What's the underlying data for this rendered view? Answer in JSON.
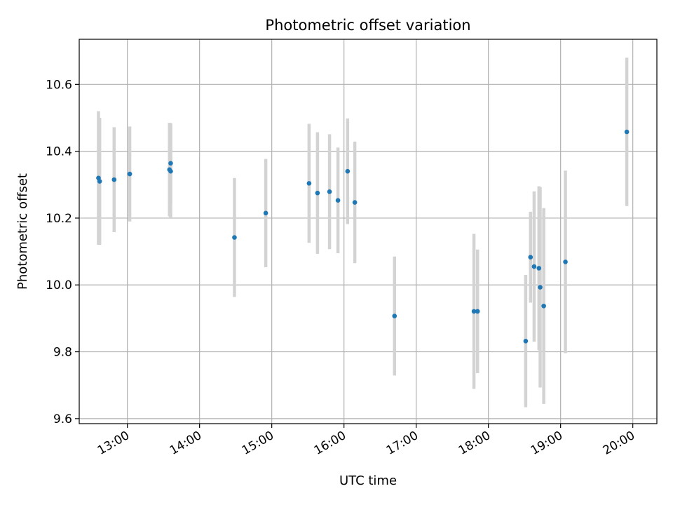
{
  "chart_data": {
    "type": "scatter",
    "title": "Photometric offset variation",
    "xlabel": "UTC time",
    "ylabel": "Photometric offset",
    "x_axis_kind": "time",
    "xlim": [
      "12:20",
      "20:20"
    ],
    "ylim": [
      9.585,
      10.735
    ],
    "x_ticks": [
      "13:00",
      "14:00",
      "15:00",
      "16:00",
      "17:00",
      "18:00",
      "19:00",
      "20:00"
    ],
    "y_ticks": [
      9.6,
      9.8,
      10.0,
      10.2,
      10.4,
      10.6
    ],
    "y_tick_labels": [
      "9.6",
      "9.8",
      "10.0",
      "10.2",
      "10.4",
      "10.6"
    ],
    "grid": true,
    "colors": {
      "points": "#1f77b4",
      "error_bars": "#d3d3d3",
      "grid": "#b0b0b0",
      "frame": "#000000"
    },
    "points": [
      {
        "x": "12:36",
        "y": 10.32,
        "err": 0.2
      },
      {
        "x": "12:37",
        "y": 10.31,
        "err": 0.19
      },
      {
        "x": "12:49",
        "y": 10.315,
        "err": 0.157
      },
      {
        "x": "13:02",
        "y": 10.332,
        "err": 0.142
      },
      {
        "x": "13:35",
        "y": 10.345,
        "err": 0.14
      },
      {
        "x": "13:36",
        "y": 10.364,
        "err": 0.12
      },
      {
        "x": "13:36",
        "y": 10.34,
        "err": 0.14
      },
      {
        "x": "14:29",
        "y": 10.142,
        "err": 0.178
      },
      {
        "x": "14:55",
        "y": 10.215,
        "err": 0.162
      },
      {
        "x": "15:31",
        "y": 10.304,
        "err": 0.178
      },
      {
        "x": "15:38",
        "y": 10.275,
        "err": 0.182
      },
      {
        "x": "15:48",
        "y": 10.279,
        "err": 0.172
      },
      {
        "x": "15:55",
        "y": 10.253,
        "err": 0.158
      },
      {
        "x": "16:03",
        "y": 10.34,
        "err": 0.158
      },
      {
        "x": "16:09",
        "y": 10.247,
        "err": 0.182
      },
      {
        "x": "16:42",
        "y": 9.907,
        "err": 0.178
      },
      {
        "x": "17:48",
        "y": 9.921,
        "err": 0.232
      },
      {
        "x": "17:51",
        "y": 9.921,
        "err": 0.185
      },
      {
        "x": "18:31",
        "y": 9.832,
        "err": 0.198
      },
      {
        "x": "18:35",
        "y": 10.083,
        "err": 0.136
      },
      {
        "x": "18:38",
        "y": 10.055,
        "err": 0.225
      },
      {
        "x": "18:42",
        "y": 10.05,
        "err": 0.245
      },
      {
        "x": "18:43",
        "y": 9.993,
        "err": 0.3
      },
      {
        "x": "18:46",
        "y": 9.937,
        "err": 0.293
      },
      {
        "x": "19:04",
        "y": 10.069,
        "err": 0.273
      },
      {
        "x": "19:55",
        "y": 10.458,
        "err": 0.222
      }
    ]
  }
}
